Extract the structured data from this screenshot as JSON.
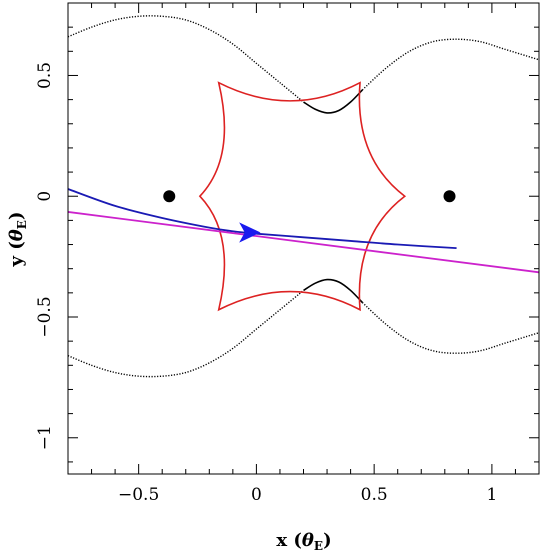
{
  "chart_data": {
    "type": "line",
    "title": "",
    "xlabel": "x",
    "xlabel_unit": "θ",
    "xlabel_unit_sub": "E",
    "ylabel": "y",
    "ylabel_unit": "θ",
    "ylabel_unit_sub": "E",
    "xlim": [
      -0.8,
      1.2
    ],
    "ylim": [
      -1.15,
      0.8
    ],
    "x_ticks": [
      -0.5,
      0,
      0.5,
      1
    ],
    "x_tick_labels": [
      "−0.5",
      "0",
      "0.5",
      "1"
    ],
    "y_ticks": [
      -1,
      -0.5,
      0,
      0.5
    ],
    "y_tick_labels": [
      "−1",
      "−0.5",
      "0",
      "0.5"
    ],
    "grid": false,
    "lenses": [
      {
        "x": -0.37,
        "y": 0.0
      },
      {
        "x": 0.82,
        "y": 0.0
      }
    ],
    "series": [
      {
        "role": "critical-curve-upper",
        "color": "#000000",
        "style": "dotted",
        "points": [
          [
            -0.8,
            0.66
          ],
          [
            -0.7,
            0.7
          ],
          [
            -0.6,
            0.73
          ],
          [
            -0.5,
            0.745
          ],
          [
            -0.4,
            0.745
          ],
          [
            -0.3,
            0.73
          ],
          [
            -0.2,
            0.69
          ],
          [
            -0.1,
            0.63
          ],
          [
            0,
            0.55
          ],
          [
            0.1,
            0.47
          ],
          [
            0.2,
            0.39
          ]
        ]
      },
      {
        "role": "critical-curve-upper",
        "color": "#000000",
        "style": "solid",
        "points": [
          [
            0.2,
            0.39
          ],
          [
            0.25,
            0.36
          ],
          [
            0.3,
            0.345
          ],
          [
            0.35,
            0.355
          ],
          [
            0.4,
            0.39
          ],
          [
            0.45,
            0.44
          ]
        ]
      },
      {
        "role": "critical-curve-upper",
        "color": "#000000",
        "style": "dotted",
        "points": [
          [
            0.45,
            0.44
          ],
          [
            0.55,
            0.53
          ],
          [
            0.65,
            0.6
          ],
          [
            0.75,
            0.64
          ],
          [
            0.85,
            0.65
          ],
          [
            0.95,
            0.64
          ],
          [
            1.05,
            0.61
          ],
          [
            1.15,
            0.58
          ],
          [
            1.2,
            0.565
          ]
        ]
      },
      {
        "role": "critical-curve-lower",
        "color": "#000000",
        "style": "dotted",
        "points": [
          [
            -0.8,
            -0.66
          ],
          [
            -0.7,
            -0.7
          ],
          [
            -0.6,
            -0.73
          ],
          [
            -0.5,
            -0.745
          ],
          [
            -0.4,
            -0.745
          ],
          [
            -0.3,
            -0.73
          ],
          [
            -0.2,
            -0.69
          ],
          [
            -0.1,
            -0.63
          ],
          [
            0,
            -0.55
          ],
          [
            0.1,
            -0.47
          ],
          [
            0.2,
            -0.39
          ]
        ]
      },
      {
        "role": "critical-curve-lower",
        "color": "#000000",
        "style": "solid",
        "points": [
          [
            0.2,
            -0.39
          ],
          [
            0.25,
            -0.36
          ],
          [
            0.3,
            -0.345
          ],
          [
            0.35,
            -0.355
          ],
          [
            0.4,
            -0.39
          ],
          [
            0.45,
            -0.44
          ]
        ]
      },
      {
        "role": "critical-curve-lower",
        "color": "#000000",
        "style": "dotted",
        "points": [
          [
            0.45,
            -0.44
          ],
          [
            0.55,
            -0.53
          ],
          [
            0.65,
            -0.6
          ],
          [
            0.75,
            -0.64
          ],
          [
            0.85,
            -0.65
          ],
          [
            0.95,
            -0.64
          ],
          [
            1.05,
            -0.61
          ],
          [
            1.15,
            -0.58
          ],
          [
            1.2,
            -0.565
          ]
        ]
      },
      {
        "role": "caustic",
        "color": "#dd2222",
        "style": "solid",
        "cusps": [
          [
            -0.16,
            0.47
          ],
          [
            0.44,
            0.47
          ],
          [
            0.63,
            0.0
          ],
          [
            0.44,
            -0.47
          ],
          [
            -0.16,
            -0.47
          ],
          [
            -0.24,
            0.0
          ]
        ]
      },
      {
        "role": "source-trajectory",
        "color": "#1a1ab4",
        "style": "solid",
        "points": [
          [
            -0.8,
            0.03
          ],
          [
            -0.6,
            -0.04
          ],
          [
            -0.4,
            -0.09
          ],
          [
            -0.2,
            -0.13
          ],
          [
            -0.1,
            -0.145
          ],
          [
            0,
            -0.155
          ],
          [
            0.2,
            -0.17
          ],
          [
            0.4,
            -0.185
          ],
          [
            0.6,
            -0.2
          ],
          [
            0.85,
            -0.215
          ]
        ]
      },
      {
        "role": "trajectory-fit",
        "color": "#cc22cc",
        "style": "solid",
        "points": [
          [
            -0.8,
            -0.065
          ],
          [
            1.2,
            -0.315
          ]
        ]
      }
    ],
    "direction_arrow": {
      "x": -0.03,
      "y": -0.15,
      "color": "#1a1aee"
    }
  }
}
